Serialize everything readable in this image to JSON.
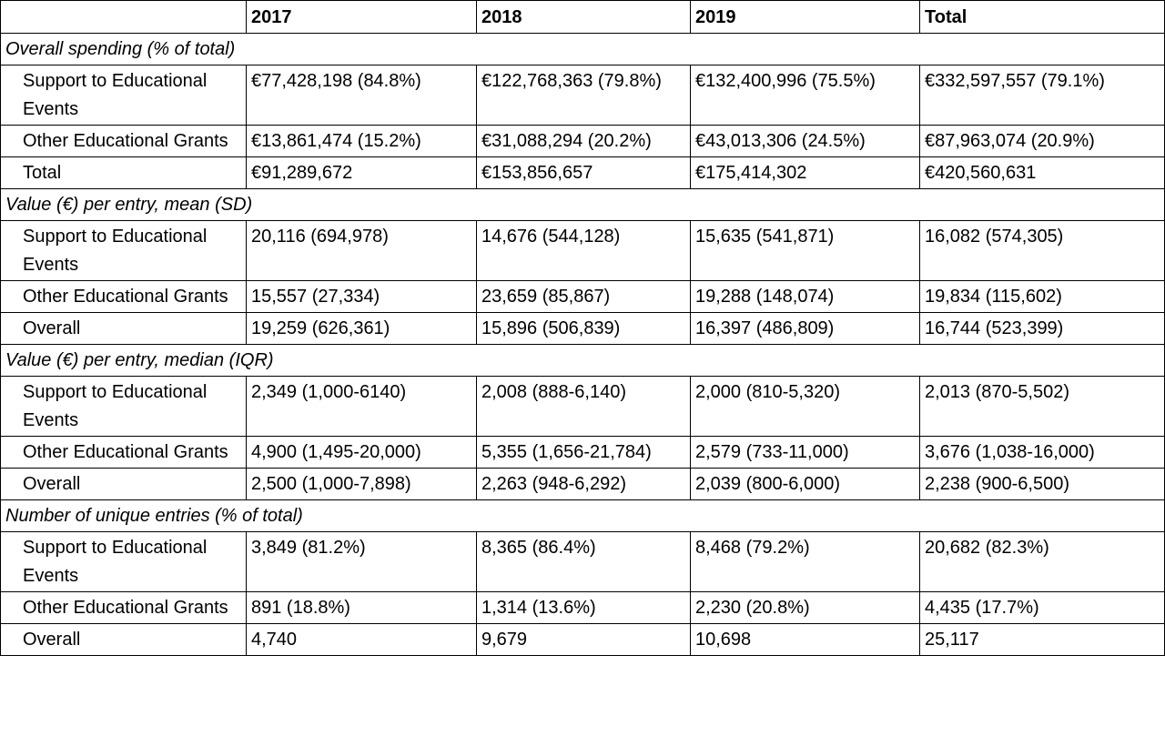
{
  "headers": [
    "",
    "2017",
    "2018",
    "2019",
    "Total"
  ],
  "sections": [
    {
      "title": "Overall spending (% of total)",
      "rows": [
        {
          "label": "Support to Educational Events",
          "cells": [
            "€77,428,198 (84.8%)",
            "€122,768,363 (79.8%)",
            "€132,400,996 (75.5%)",
            "€332,597,557 (79.1%)"
          ]
        },
        {
          "label": "Other Educational Grants",
          "cells": [
            "€13,861,474 (15.2%)",
            "€31,088,294 (20.2%)",
            "€43,013,306 (24.5%)",
            "€87,963,074 (20.9%)"
          ]
        },
        {
          "label": "Total",
          "cells": [
            "€91,289,672",
            "€153,856,657",
            "€175,414,302",
            "€420,560,631"
          ]
        }
      ]
    },
    {
      "title": "Value (€) per entry, mean (SD)",
      "rows": [
        {
          "label": "Support to Educational Events",
          "cells": [
            "20,116 (694,978)",
            "14,676 (544,128)",
            "15,635 (541,871)",
            "16,082 (574,305)"
          ]
        },
        {
          "label": "Other Educational Grants",
          "cells": [
            "15,557 (27,334)",
            "23,659 (85,867)",
            "19,288 (148,074)",
            "19,834 (115,602)"
          ]
        },
        {
          "label": "Overall",
          "cells": [
            "19,259 (626,361)",
            "15,896 (506,839)",
            "16,397 (486,809)",
            "16,744 (523,399)"
          ]
        }
      ]
    },
    {
      "title": "Value (€) per entry, median (IQR)",
      "rows": [
        {
          "label": "Support to Educational Events",
          "cells": [
            "2,349 (1,000-6140)",
            "2,008 (888-6,140)",
            "2,000 (810-5,320)",
            "2,013 (870-5,502)"
          ]
        },
        {
          "label": "Other Educational Grants",
          "cells": [
            "4,900 (1,495-20,000)",
            "5,355 (1,656-21,784)",
            "2,579 (733-11,000)",
            "3,676 (1,038-16,000)"
          ]
        },
        {
          "label": "Overall",
          "cells": [
            "2,500 (1,000-7,898)",
            "2,263 (948-6,292)",
            "2,039 (800-6,000)",
            "2,238 (900-6,500)"
          ]
        }
      ]
    },
    {
      "title": "Number of unique entries (% of total)",
      "rows": [
        {
          "label": "Support to Educational Events",
          "cells": [
            "3,849 (81.2%)",
            "8,365 (86.4%)",
            "8,468 (79.2%)",
            "20,682 (82.3%)"
          ]
        },
        {
          "label": "Other Educational Grants",
          "cells": [
            "891 (18.8%)",
            "1,314 (13.6%)",
            "2,230 (20.8%)",
            "4,435 (17.7%)"
          ]
        },
        {
          "label": "Overall",
          "cells": [
            "4,740",
            "9,679",
            "10,698",
            "25,117"
          ]
        }
      ]
    }
  ]
}
